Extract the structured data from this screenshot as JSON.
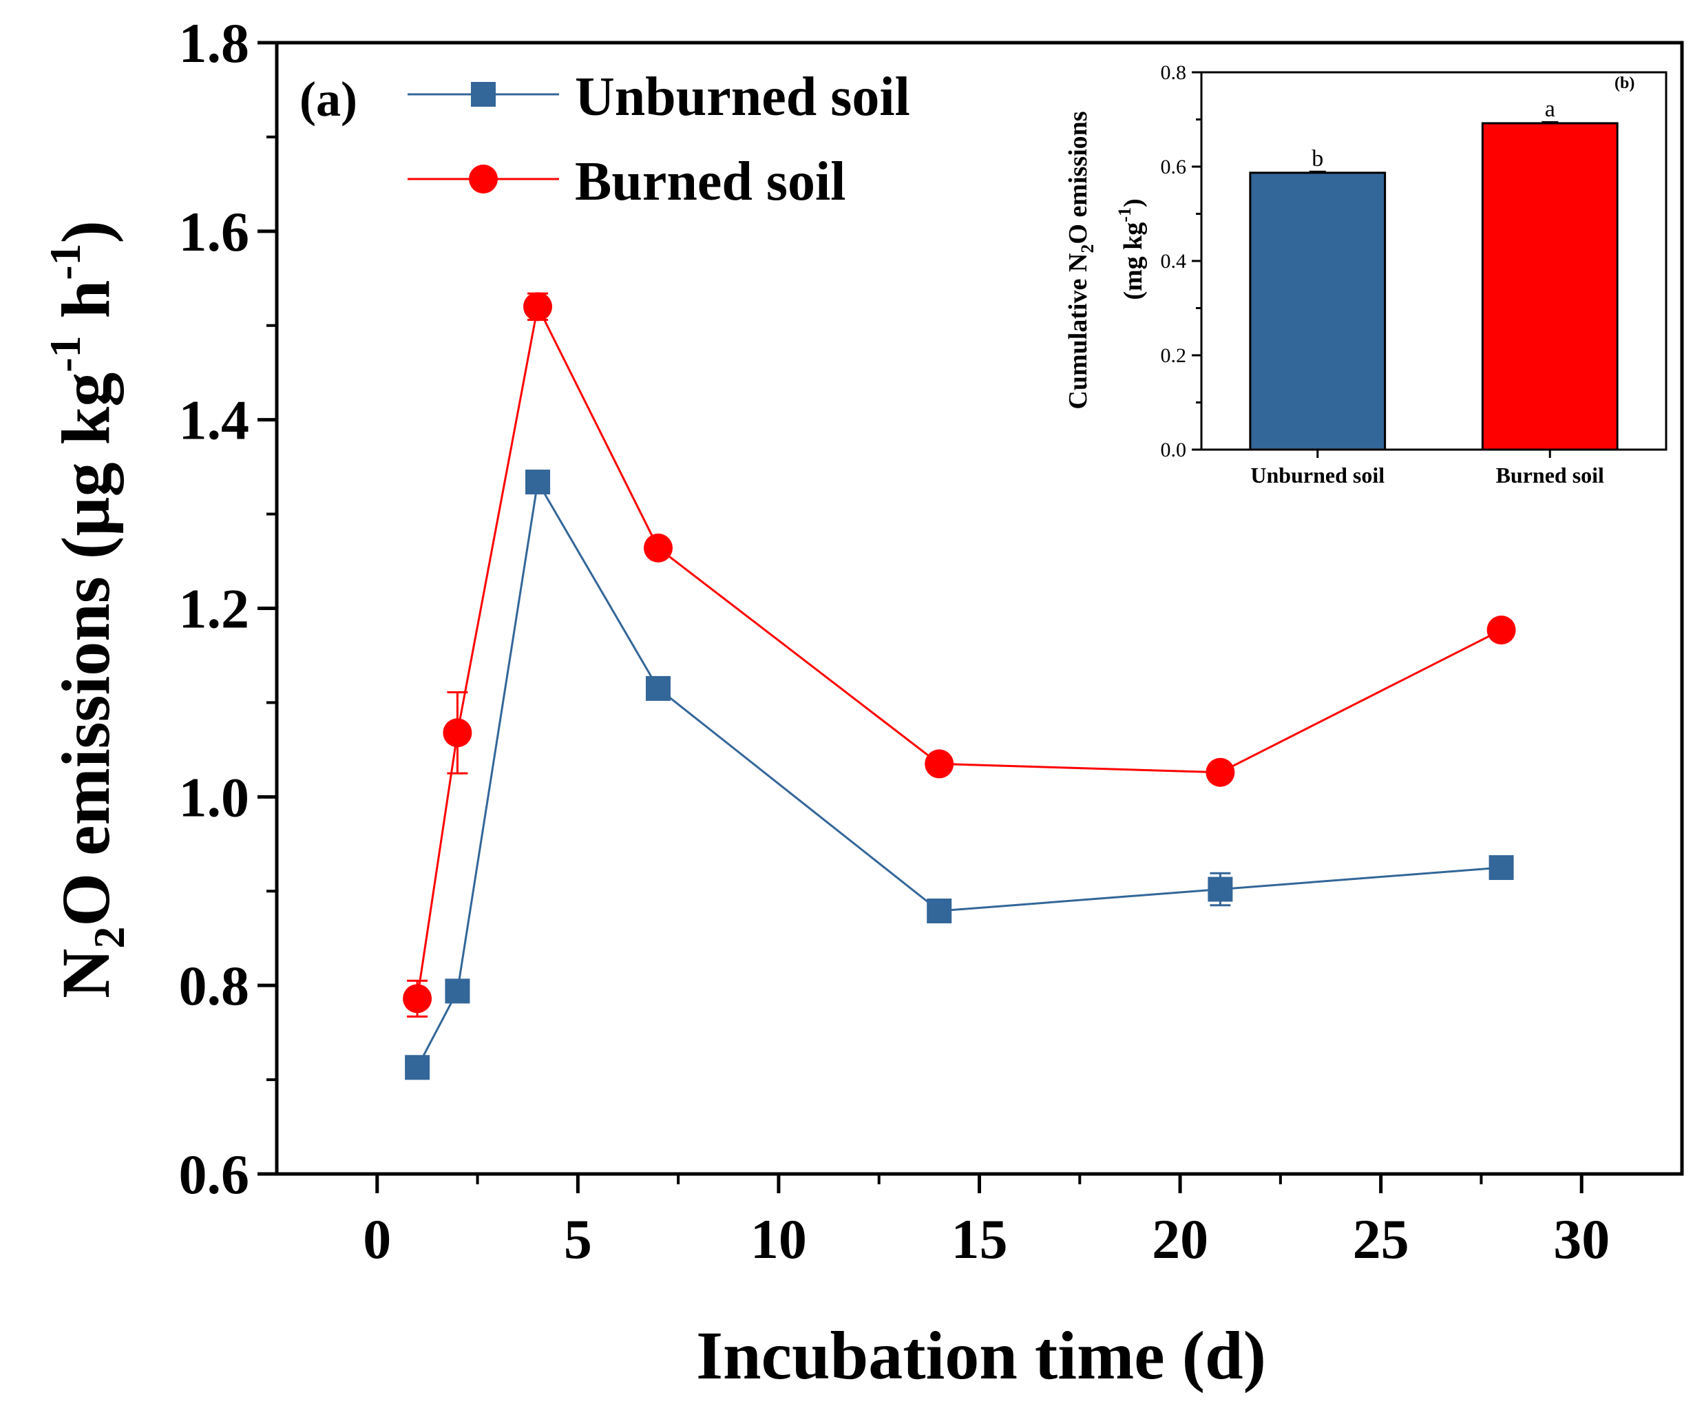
{
  "colors": {
    "unburned": "#336699",
    "burned": "#ff0000",
    "axis": "#000000"
  },
  "chart_data": [
    {
      "type": "line",
      "panel_label": "(a)",
      "xlabel": "Incubation time (d)",
      "ylabel": {
        "prefix": "N",
        "sub": "2",
        "mid": "O emissions (µg kg",
        "sup1": "-1",
        "mid2": " h",
        "sup2": "-1",
        "suffix": ")"
      },
      "xlim": [
        -2.5,
        32.5
      ],
      "ylim": [
        0.6,
        1.8
      ],
      "xticks": [
        0,
        5,
        10,
        15,
        20,
        25,
        30
      ],
      "yticks": [
        0.6,
        0.8,
        1.0,
        1.2,
        1.4,
        1.6,
        1.8
      ],
      "ytick_labels": [
        "0.6",
        "0.8",
        "1.0",
        "1.2",
        "1.4",
        "1.6",
        "1.8"
      ],
      "grid": false,
      "legend_position": "top-left",
      "series": [
        {
          "name": "Unburned soil",
          "color": "#336699",
          "marker": "square",
          "x": [
            1,
            2,
            4,
            7,
            14,
            21,
            28
          ],
          "values": [
            0.713,
            0.794,
            1.334,
            1.115,
            0.879,
            0.902,
            0.925
          ],
          "errors": [
            0.004,
            0.005,
            0.008,
            0.008,
            0.005,
            0.017,
            0.006
          ]
        },
        {
          "name": "Burned soil",
          "color": "#ff0000",
          "marker": "circle",
          "x": [
            1,
            2,
            4,
            7,
            14,
            21,
            28
          ],
          "values": [
            0.786,
            1.068,
            1.52,
            1.264,
            1.035,
            1.026,
            1.177
          ],
          "errors": [
            0.019,
            0.043,
            0.014,
            0.008,
            0.006,
            0.005,
            0.006
          ]
        }
      ]
    },
    {
      "type": "bar",
      "panel_label": "(b)",
      "categories": [
        "Unburned soil",
        "Burned soil"
      ],
      "values": [
        0.587,
        0.692
      ],
      "colors": [
        "#336699",
        "#ff0000"
      ],
      "significance_letters": [
        "b",
        "a"
      ],
      "ylim": [
        0.0,
        0.8
      ],
      "yticks": [
        0.0,
        0.2,
        0.4,
        0.6,
        0.8
      ],
      "ytick_labels": [
        "0.0",
        "0.2",
        "0.4",
        "0.6",
        "0.8"
      ],
      "ylabel": {
        "line1_prefix": "Cumulative N",
        "line1_sub": "2",
        "line1_suffix": "O emissions",
        "line2_prefix": "(mg kg",
        "line2_sup": "-1",
        "line2_suffix": ")"
      },
      "xlabel": ""
    }
  ]
}
